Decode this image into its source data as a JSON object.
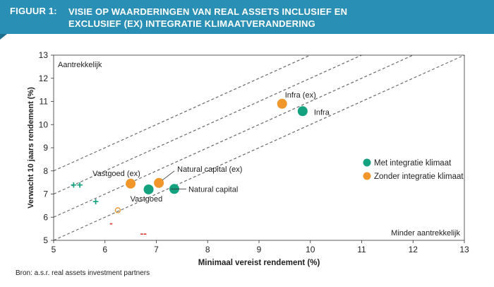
{
  "header": {
    "figure_label": "FIGUUR 1:",
    "title": "VISIE OP WAARDERINGEN VAN REAL ASSETS INCLUSIEF EN EXCLUSIEF (EX) INTEGRATIE KLIMAATVERANDERING",
    "background_color": "#2a8fb4"
  },
  "source": "Bron: a.s.r. real assets investment partners",
  "chart_data": {
    "type": "scatter",
    "title": "VISIE OP WAARDERINGEN VAN REAL ASSETS INCLUSIEF EN EXCLUSIEF (EX) INTEGRATIE KLIMAATVERANDERING",
    "xlabel": "Minimaal vereist rendement (%)",
    "ylabel": "Verwacht 10 jaars rendement (%)",
    "xlim": [
      5,
      13
    ],
    "ylim": [
      5,
      13
    ],
    "x_ticks": [
      5,
      6,
      7,
      8,
      9,
      10,
      11,
      12,
      13
    ],
    "y_ticks": [
      5,
      6,
      7,
      8,
      9,
      10,
      11,
      12,
      13
    ],
    "grid": false,
    "legend_position": "right",
    "annotations": {
      "top_left": "Aantrekkelijk",
      "bottom_right": "Minder aantrekkelijk"
    },
    "reference_lines": [
      {
        "intercept": 3,
        "slope": 1
      },
      {
        "intercept": 2,
        "slope": 1
      },
      {
        "intercept": 1,
        "slope": 1
      },
      {
        "intercept": 0,
        "slope": 1
      }
    ],
    "series": [
      {
        "name": "Met integratie klimaat",
        "color": "#13a17f",
        "points": [
          {
            "label": "Vastgoed",
            "x": 6.85,
            "y": 7.2
          },
          {
            "label": "Natural capital",
            "x": 7.35,
            "y": 7.22
          },
          {
            "label": "Infra",
            "x": 9.85,
            "y": 10.58
          }
        ]
      },
      {
        "name": "Zonder integratie klimaat",
        "color": "#f0962b",
        "points": [
          {
            "label": "Vastgoed (ex)",
            "x": 6.5,
            "y": 7.45
          },
          {
            "label": "Natural capital (ex)",
            "x": 7.05,
            "y": 7.48
          },
          {
            "label": "Infra (ex)",
            "x": 9.45,
            "y": 10.9
          }
        ]
      }
    ],
    "key_markers": [
      {
        "symbol": "++",
        "color": "#13a17f",
        "x": 5.45,
        "y": 7.4
      },
      {
        "symbol": "+",
        "color": "#13a17f",
        "x": 5.82,
        "y": 6.68
      },
      {
        "symbol": "o",
        "color": "#f0962b",
        "x": 6.25,
        "y": 6.3
      },
      {
        "symbol": "-",
        "color": "#e0342b",
        "x": 6.12,
        "y": 5.75
      },
      {
        "symbol": "--",
        "color": "#e0342b",
        "x": 6.75,
        "y": 5.3
      }
    ]
  }
}
